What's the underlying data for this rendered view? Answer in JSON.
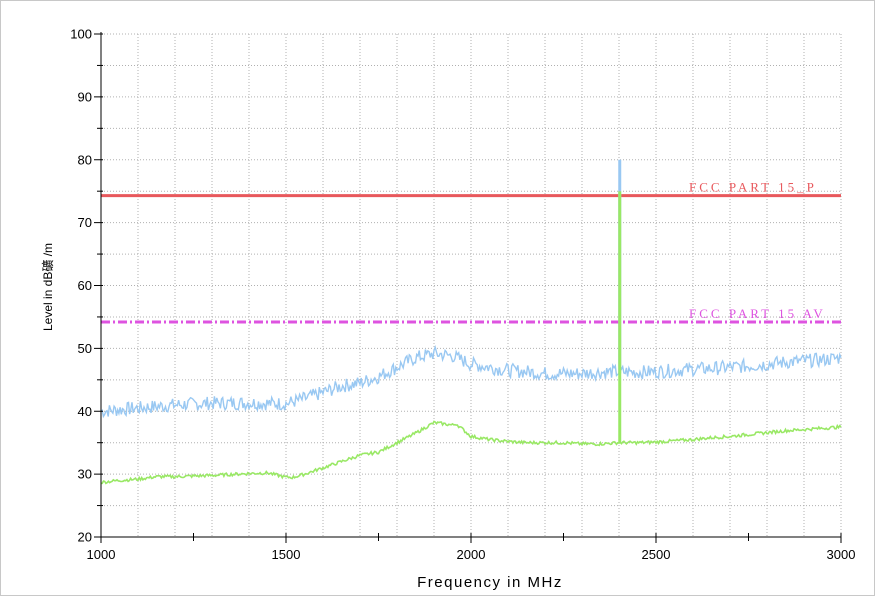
{
  "colors": {
    "peak_trace": "#99c8f2",
    "avg_trace": "#99e865",
    "limit_peak": "#e8585c",
    "limit_avg": "#de53e0",
    "grid": "#b0b0b0"
  },
  "chart_data": {
    "type": "line",
    "title": "",
    "xlabel": "Frequency in MHz",
    "ylabel": "Level in dB礦 /m",
    "xlim": [
      1000,
      3000
    ],
    "ylim": [
      20,
      100
    ],
    "x_ticks": [
      1000,
      1500,
      2000,
      2500,
      3000
    ],
    "y_ticks": [
      20,
      30,
      40,
      50,
      60,
      70,
      80,
      90,
      100
    ],
    "x_tick_labels": [
      "1000",
      "1500",
      "2000",
      "2500",
      "3000"
    ],
    "y_tick_labels": [
      "20",
      "30",
      "40",
      "50",
      "60",
      "70",
      "80",
      "90",
      "100"
    ],
    "grid": true,
    "series": [
      {
        "role": "peak",
        "color": "#99c8f2",
        "x": [
          1000,
          1100,
          1200,
          1300,
          1400,
          1500,
          1550,
          1600,
          1650,
          1700,
          1750,
          1800,
          1850,
          1900,
          1950,
          2000,
          2050,
          2100,
          2150,
          2200,
          2250,
          2300,
          2350,
          2400,
          2450,
          2500,
          2550,
          2600,
          2650,
          2700,
          2750,
          2800,
          2850,
          2900,
          2950,
          3000
        ],
        "values": [
          40,
          40.5,
          41,
          41.3,
          41.3,
          41.2,
          42,
          43,
          44,
          44.5,
          45.5,
          47,
          48.5,
          49.2,
          48.8,
          47.5,
          47,
          46.5,
          46.3,
          46,
          46,
          46,
          46.2,
          46.3,
          46.2,
          46.3,
          46.5,
          46.7,
          46.8,
          47,
          47.2,
          47.5,
          47.8,
          48,
          48.2,
          48.5
        ],
        "spike": {
          "x": 2402,
          "from": 46,
          "to": 80
        }
      },
      {
        "role": "average",
        "color": "#99e865",
        "x": [
          1000,
          1050,
          1100,
          1150,
          1200,
          1300,
          1400,
          1450,
          1500,
          1520,
          1550,
          1600,
          1650,
          1700,
          1750,
          1800,
          1850,
          1900,
          1950,
          1960,
          2000,
          2050,
          2100,
          2150,
          2200,
          2250,
          2300,
          2350,
          2400,
          2450,
          2500,
          2550,
          2600,
          2650,
          2700,
          2750,
          2800,
          2850,
          2900,
          2950,
          3000
        ],
        "values": [
          28.7,
          29,
          29.2,
          29.6,
          29.6,
          29.8,
          30.1,
          30.2,
          29.5,
          29.5,
          30,
          31,
          32,
          33,
          33.5,
          35,
          36.5,
          38.2,
          37.8,
          38,
          36,
          35.5,
          35.2,
          35,
          35,
          35,
          34.8,
          34.8,
          35,
          35,
          35.1,
          35.3,
          35.5,
          35.8,
          36,
          36.3,
          36.6,
          36.9,
          37.1,
          37.3,
          37.5
        ],
        "spike": {
          "x": 2402,
          "from": 35,
          "to": 75
        }
      }
    ],
    "limits": [
      {
        "label": "FCC PART 15_P",
        "value": 74.3,
        "color": "#e8585c",
        "style": "solid"
      },
      {
        "label": "FCC PART 15 AV",
        "value": 54.2,
        "color": "#de53e0",
        "style": "dashdot"
      }
    ]
  }
}
